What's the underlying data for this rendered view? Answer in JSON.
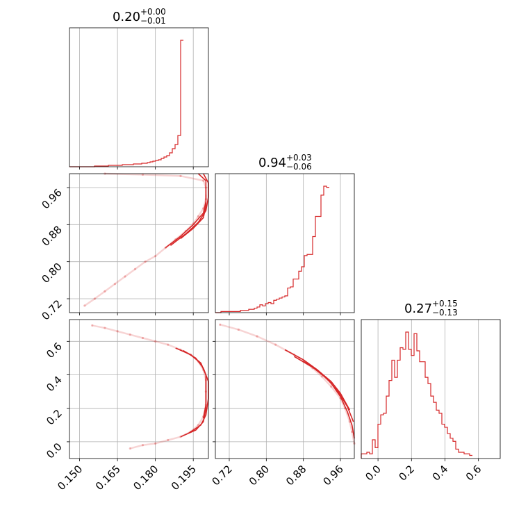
{
  "chart_data": {
    "type": "corner",
    "color": "#d62728",
    "grid": true,
    "titles": [
      {
        "value": "0.20",
        "plus": "+0.00",
        "minus": "−0.01"
      },
      {
        "value": "0.94",
        "plus": "+0.03",
        "minus": "−0.06"
      },
      {
        "value": "0.27",
        "plus": "+0.15",
        "minus": "−0.13"
      }
    ],
    "params": [
      {
        "range": [
          0.146,
          0.201
        ],
        "ticks": [
          0.15,
          0.165,
          0.18,
          0.195
        ],
        "tick_labels": [
          "0.150",
          "0.165",
          "0.180",
          "0.195"
        ]
      },
      {
        "range": [
          0.69,
          0.99
        ],
        "ticks": [
          0.72,
          0.8,
          0.88,
          0.96
        ],
        "tick_labels": [
          "0.72",
          "0.80",
          "0.88",
          "0.96"
        ]
      },
      {
        "range": [
          -0.1,
          0.73
        ],
        "ticks": [
          0.0,
          0.2,
          0.4,
          0.6
        ],
        "tick_labels": [
          "0.0",
          "0.2",
          "0.4",
          "0.6"
        ]
      }
    ],
    "hist1d": [
      {
        "bin_start": 0.146,
        "bin_width": 0.0011,
        "counts": [
          0,
          0,
          0,
          0,
          0,
          0,
          0,
          0,
          0,
          1,
          1,
          1,
          1,
          1,
          2,
          2,
          2,
          2,
          2,
          3,
          3,
          3,
          3,
          4,
          4,
          4,
          5,
          5,
          6,
          7,
          8,
          9,
          10,
          12,
          14,
          16,
          20,
          26,
          32,
          45,
          182
        ]
      },
      {
        "bin_start": 0.69,
        "bin_width": 0.006,
        "counts": [
          0,
          0,
          1,
          1,
          1,
          1,
          1,
          1,
          1,
          2,
          2,
          2,
          3,
          3,
          4,
          5,
          7,
          6,
          8,
          9,
          8,
          11,
          12,
          13,
          14,
          15,
          22,
          23,
          30,
          30,
          37,
          41,
          51,
          52,
          52,
          68,
          86,
          86,
          105,
          113,
          112
        ]
      },
      {
        "bin_start": -0.1,
        "bin_width": 0.0166,
        "counts": [
          3,
          3,
          4,
          3,
          12,
          7,
          22,
          28,
          29,
          40,
          50,
          63,
          52,
          63,
          71,
          70,
          81,
          70,
          66,
          80,
          69,
          62,
          62,
          52,
          48,
          40,
          36,
          31,
          29,
          22,
          20,
          16,
          13,
          11,
          6,
          4,
          4,
          3,
          3,
          2
        ]
      }
    ],
    "hist2d": [
      {
        "row": 2,
        "col": 1,
        "samples": [
          [
            0.152,
            0.705
          ],
          [
            0.156,
            0.72
          ],
          [
            0.16,
            0.736
          ],
          [
            0.164,
            0.752
          ],
          [
            0.168,
            0.768
          ],
          [
            0.172,
            0.784
          ],
          [
            0.176,
            0.8
          ],
          [
            0.18,
            0.812
          ],
          [
            0.184,
            0.83
          ],
          [
            0.188,
            0.848
          ],
          [
            0.192,
            0.866
          ],
          [
            0.195,
            0.882
          ],
          [
            0.197,
            0.898
          ],
          [
            0.199,
            0.915
          ],
          [
            0.2,
            0.935
          ],
          [
            0.2,
            0.96
          ],
          [
            0.199,
            0.975
          ],
          [
            0.19,
            0.985
          ],
          [
            0.175,
            0.988
          ],
          [
            0.16,
            0.99
          ]
        ],
        "contours": [
          [
            [
              0.184,
              0.83
            ],
            [
              0.19,
              0.855
            ],
            [
              0.195,
              0.88
            ],
            [
              0.199,
              0.905
            ],
            [
              0.2,
              0.93
            ],
            [
              0.2,
              0.95
            ],
            [
              0.2,
              0.975
            ],
            [
              0.197,
              0.99
            ]
          ],
          [
            [
              0.186,
              0.835
            ],
            [
              0.192,
              0.86
            ],
            [
              0.197,
              0.885
            ],
            [
              0.2,
              0.91
            ],
            [
              0.201,
              0.94
            ],
            [
              0.201,
              0.97
            ],
            [
              0.199,
              0.99
            ]
          ],
          [
            [
              0.19,
              0.85
            ],
            [
              0.195,
              0.872
            ],
            [
              0.199,
              0.895
            ],
            [
              0.2,
              0.92
            ],
            [
              0.2,
              0.945
            ]
          ]
        ]
      },
      {
        "row": 3,
        "col": 1,
        "samples": [
          [
            0.155,
            0.695
          ],
          [
            0.16,
            0.68
          ],
          [
            0.165,
            0.66
          ],
          [
            0.17,
            0.64
          ],
          [
            0.175,
            0.62
          ],
          [
            0.18,
            0.6
          ],
          [
            0.185,
            0.58
          ],
          [
            0.19,
            0.55
          ],
          [
            0.194,
            0.52
          ],
          [
            0.197,
            0.48
          ],
          [
            0.199,
            0.43
          ],
          [
            0.2,
            0.37
          ],
          [
            0.2,
            0.3
          ],
          [
            0.2,
            0.22
          ],
          [
            0.199,
            0.15
          ],
          [
            0.197,
            0.1
          ],
          [
            0.194,
            0.06
          ],
          [
            0.19,
            0.03
          ],
          [
            0.185,
            0.01
          ],
          [
            0.18,
            -0.01
          ],
          [
            0.175,
            -0.02
          ],
          [
            0.17,
            -0.04
          ]
        ],
        "contours": [
          [
            [
              0.188,
              0.56
            ],
            [
              0.194,
              0.52
            ],
            [
              0.198,
              0.47
            ],
            [
              0.2,
              0.4
            ],
            [
              0.2,
              0.3
            ],
            [
              0.2,
              0.2
            ],
            [
              0.199,
              0.12
            ],
            [
              0.196,
              0.07
            ],
            [
              0.19,
              0.03
            ]
          ],
          [
            [
              0.191,
              0.545
            ],
            [
              0.196,
              0.5
            ],
            [
              0.199,
              0.44
            ],
            [
              0.201,
              0.36
            ],
            [
              0.201,
              0.26
            ],
            [
              0.2,
              0.16
            ],
            [
              0.198,
              0.1
            ],
            [
              0.193,
              0.05
            ]
          ],
          [
            [
              0.194,
              0.52
            ],
            [
              0.198,
              0.47
            ],
            [
              0.2,
              0.4
            ],
            [
              0.2,
              0.3
            ],
            [
              0.2,
              0.22
            ],
            [
              0.199,
              0.14
            ]
          ]
        ]
      },
      {
        "row": 3,
        "col": 2,
        "samples": [
          [
            0.7,
            0.7
          ],
          [
            0.74,
            0.67
          ],
          [
            0.78,
            0.63
          ],
          [
            0.82,
            0.58
          ],
          [
            0.86,
            0.52
          ],
          [
            0.88,
            0.48
          ],
          [
            0.9,
            0.44
          ],
          [
            0.92,
            0.39
          ],
          [
            0.94,
            0.33
          ],
          [
            0.96,
            0.26
          ],
          [
            0.97,
            0.2
          ],
          [
            0.98,
            0.12
          ],
          [
            0.985,
            0.06
          ],
          [
            0.99,
            -0.01
          ]
        ],
        "contours": [
          [
            [
              0.84,
              0.55
            ],
            [
              0.88,
              0.49
            ],
            [
              0.91,
              0.43
            ],
            [
              0.94,
              0.35
            ],
            [
              0.96,
              0.27
            ],
            [
              0.975,
              0.18
            ],
            [
              0.985,
              0.1
            ],
            [
              0.99,
              0.02
            ]
          ],
          [
            [
              0.86,
              0.51
            ],
            [
              0.9,
              0.445
            ],
            [
              0.93,
              0.38
            ],
            [
              0.955,
              0.3
            ],
            [
              0.975,
              0.21
            ],
            [
              0.988,
              0.12
            ]
          ],
          [
            [
              0.88,
              0.48
            ],
            [
              0.91,
              0.43
            ],
            [
              0.94,
              0.36
            ],
            [
              0.96,
              0.29
            ],
            [
              0.98,
              0.19
            ]
          ]
        ]
      }
    ]
  }
}
